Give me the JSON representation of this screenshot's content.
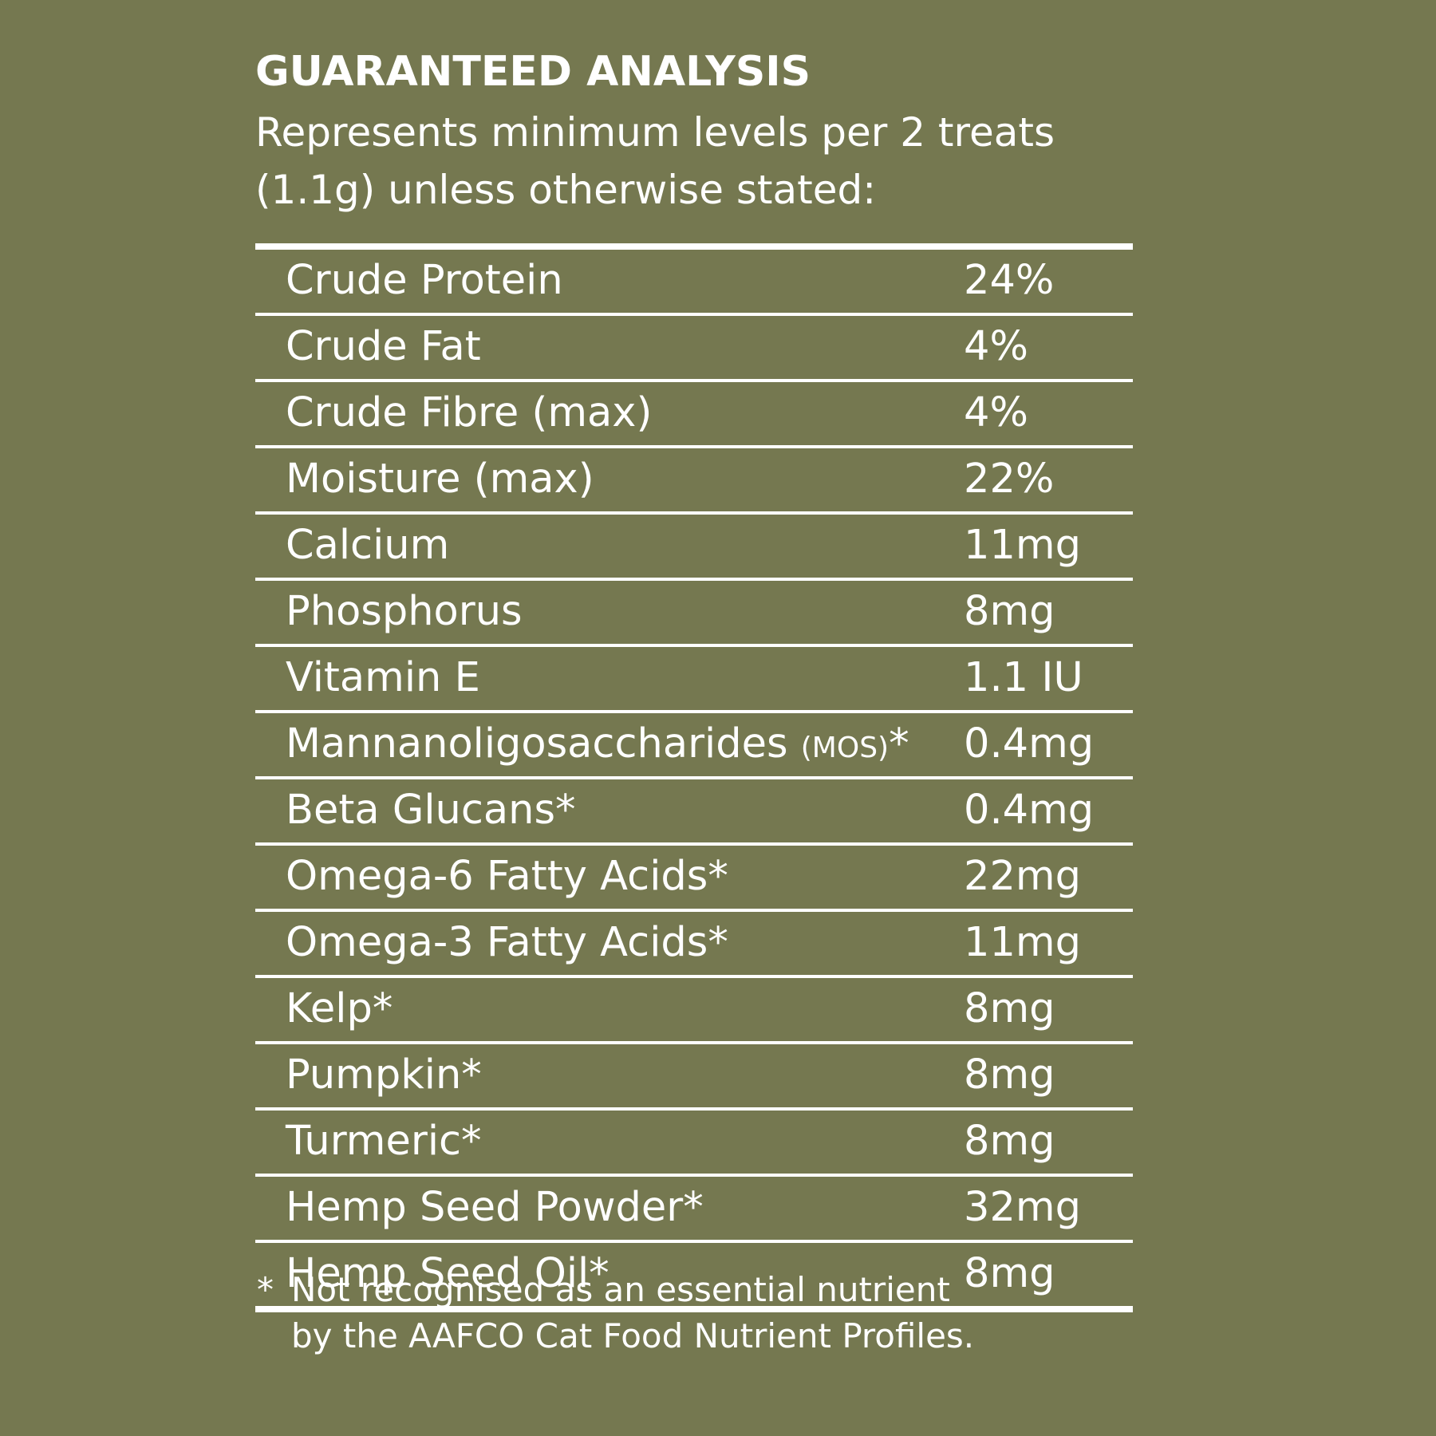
{
  "header": {
    "title": "GUARANTEED ANALYSIS",
    "subtitle_line1": "Represents minimum levels per 2 treats",
    "subtitle_line2": "(1.1g) unless otherwise stated:"
  },
  "rows": [
    {
      "label": "Crude Protein",
      "suffix": "",
      "value": "24%"
    },
    {
      "label": "Crude Fat",
      "suffix": "",
      "value": "4%"
    },
    {
      "label": "Crude Fibre (max)",
      "suffix": "",
      "value": "4%"
    },
    {
      "label": "Moisture (max)",
      "suffix": "",
      "value": "22%"
    },
    {
      "label": "Calcium",
      "suffix": "",
      "value": "11mg"
    },
    {
      "label": "Phosphorus",
      "suffix": "",
      "value": "8mg"
    },
    {
      "label": "Vitamin E",
      "suffix": "",
      "value": "1.1 IU"
    },
    {
      "label": "Mannanoligosaccharides ",
      "small": "(MOS)",
      "suffix": "*",
      "value": "0.4mg"
    },
    {
      "label": "Beta Glucans*",
      "suffix": "",
      "value": "0.4mg"
    },
    {
      "label": "Omega-6 Fatty Acids*",
      "suffix": "",
      "value": "22mg"
    },
    {
      "label": "Omega-3 Fatty Acids*",
      "suffix": "",
      "value": "11mg"
    },
    {
      "label": "Kelp*",
      "suffix": "",
      "value": "8mg"
    },
    {
      "label": "Pumpkin*",
      "suffix": "",
      "value": "8mg"
    },
    {
      "label": "Turmeric*",
      "suffix": "",
      "value": "8mg"
    },
    {
      "label": "Hemp Seed Powder*",
      "suffix": "",
      "value": "32mg"
    },
    {
      "label": "Hemp Seed Oil*",
      "suffix": "",
      "value": "8mg"
    }
  ],
  "footnote": {
    "star": "*",
    "line1": "Not recognised as an essential nutrient",
    "line2": "by the AAFCO Cat Food Nutrient Profiles."
  },
  "colors": {
    "background": "#757850",
    "text": "#ffffff"
  }
}
